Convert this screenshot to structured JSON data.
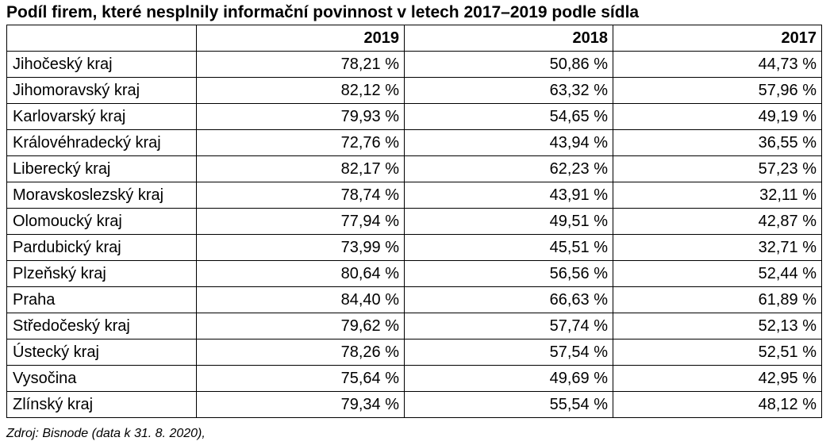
{
  "title": "Podíl firem, které nesplnily informační povinnost v letech 2017–2019 podle sídla",
  "source": "Zdroj: Bisnode (data k 31. 8. 2020),",
  "chart_data": {
    "type": "table",
    "title": "Podíl firem, které nesplnily informační povinnost v letech 2017–2019 podle sídla",
    "columns": [
      "",
      "2019",
      "2018",
      "2017"
    ],
    "unit": "%",
    "rows": [
      {
        "label": "Jihočeský kraj",
        "values": [
          "78,21 %",
          "50,86 %",
          "44,73 %"
        ]
      },
      {
        "label": "Jihomoravský kraj",
        "values": [
          "82,12 %",
          "63,32 %",
          "57,96 %"
        ]
      },
      {
        "label": "Karlovarský kraj",
        "values": [
          "79,93 %",
          "54,65 %",
          "49,19 %"
        ]
      },
      {
        "label": "Královéhradecký kraj",
        "values": [
          "72,76 %",
          "43,94 %",
          "36,55 %"
        ]
      },
      {
        "label": "Liberecký kraj",
        "values": [
          "82,17 %",
          "62,23 %",
          "57,23 %"
        ]
      },
      {
        "label": "Moravskoslezský kraj",
        "values": [
          "78,74 %",
          "43,91 %",
          "32,11 %"
        ]
      },
      {
        "label": "Olomoucký kraj",
        "values": [
          "77,94 %",
          "49,51 %",
          "42,87 %"
        ]
      },
      {
        "label": "Pardubický kraj",
        "values": [
          "73,99 %",
          "45,51 %",
          "32,71 %"
        ]
      },
      {
        "label": "Plzeňský kraj",
        "values": [
          "80,64 %",
          "56,56 %",
          "52,44 %"
        ]
      },
      {
        "label": "Praha",
        "values": [
          "84,40 %",
          "66,63 %",
          "61,89 %"
        ]
      },
      {
        "label": "Středočeský kraj",
        "values": [
          "79,62 %",
          "57,74 %",
          "52,13 %"
        ]
      },
      {
        "label": "Ústecký kraj",
        "values": [
          "78,26 %",
          "57,54 %",
          "52,51 %"
        ]
      },
      {
        "label": "Vysočina",
        "values": [
          "75,64 %",
          "49,69 %",
          "42,95 %"
        ]
      },
      {
        "label": "Zlínský kraj",
        "values": [
          "79,34 %",
          "55,54 %",
          "48,12 %"
        ]
      }
    ]
  }
}
